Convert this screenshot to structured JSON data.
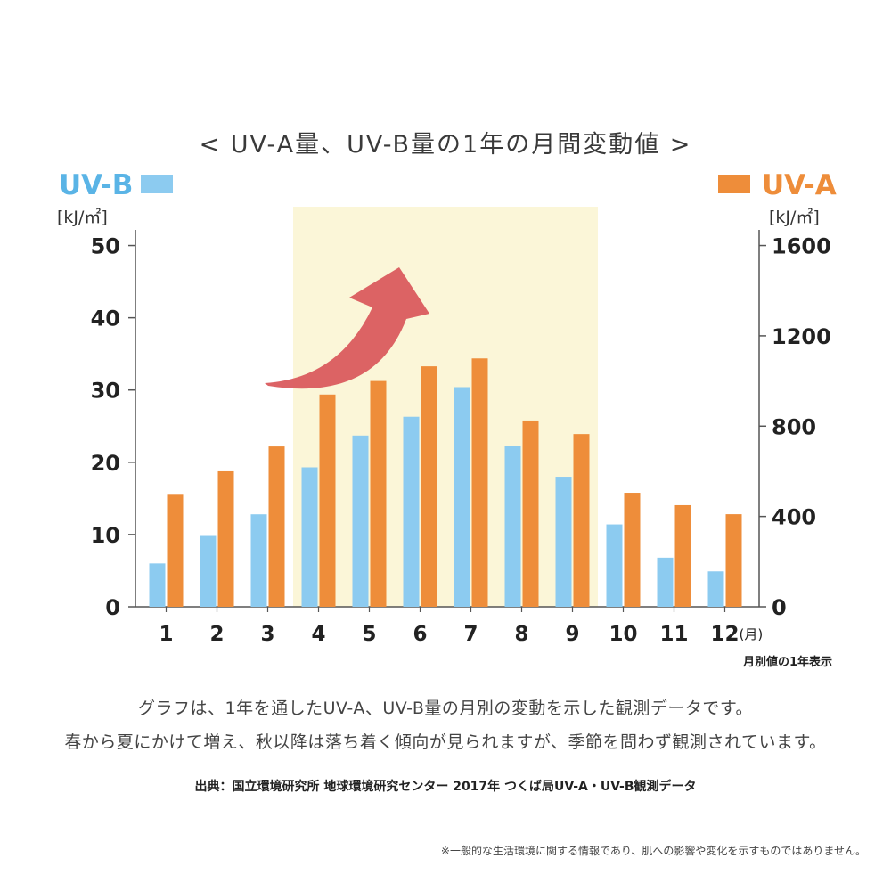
{
  "chart_title": "< UV-A量、UV-B量の1年の月間変動値 >",
  "chart_data": {
    "type": "bar",
    "title": "< UV-A量、UV-B量の1年の月間変動値 >",
    "categories": [
      "1",
      "2",
      "3",
      "4",
      "5",
      "6",
      "7",
      "8",
      "9",
      "10",
      "11",
      "12"
    ],
    "category_unit": "(月)",
    "series": [
      {
        "name": "UV-B",
        "axis": "left",
        "color": "#8ccbf0",
        "values": [
          6,
          9.8,
          12.8,
          19.3,
          23.7,
          26.3,
          30.4,
          22.3,
          18,
          11.4,
          6.8,
          4.9
        ]
      },
      {
        "name": "UV-A",
        "axis": "right",
        "color": "#ee8d3a",
        "values": [
          500,
          600,
          710,
          940,
          1000,
          1065,
          1100,
          825,
          765,
          505,
          450,
          410
        ]
      }
    ],
    "y_left": {
      "unit": "[kJ/㎡]",
      "min": 0,
      "max": 55,
      "ticks": [
        "0",
        "10",
        "20",
        "30",
        "40",
        "50"
      ]
    },
    "y_right": {
      "unit": "[kJ/㎡]",
      "min": 0,
      "max": 1760,
      "ticks": [
        "0",
        "400",
        "800",
        "1200",
        "1600"
      ]
    },
    "highlight_months": [
      4,
      9
    ],
    "highlight_color": "#fbf6d8",
    "annotation": "月別値の1年表示",
    "legend": {
      "left": "UV-B",
      "right": "UV-A",
      "left_color": "#5ab4e6",
      "right_color": "#ee8d3a"
    },
    "arrow_color": "#d9575a"
  },
  "description": [
    "グラフは、1年を通したUV-A、UV-B量の月別の変動を示した観測データです。",
    "春から夏にかけて増え、秋以降は落ち着く傾向が見られますが、季節を問わず観測されています。"
  ],
  "source": "出典：国立環境研究所 地球環境研究センター 2017年 つくば局UV-A・UV-B観測データ",
  "note": "※一般的な生活環境に関する情報であり、肌への影響や変化を示すものではありません。"
}
